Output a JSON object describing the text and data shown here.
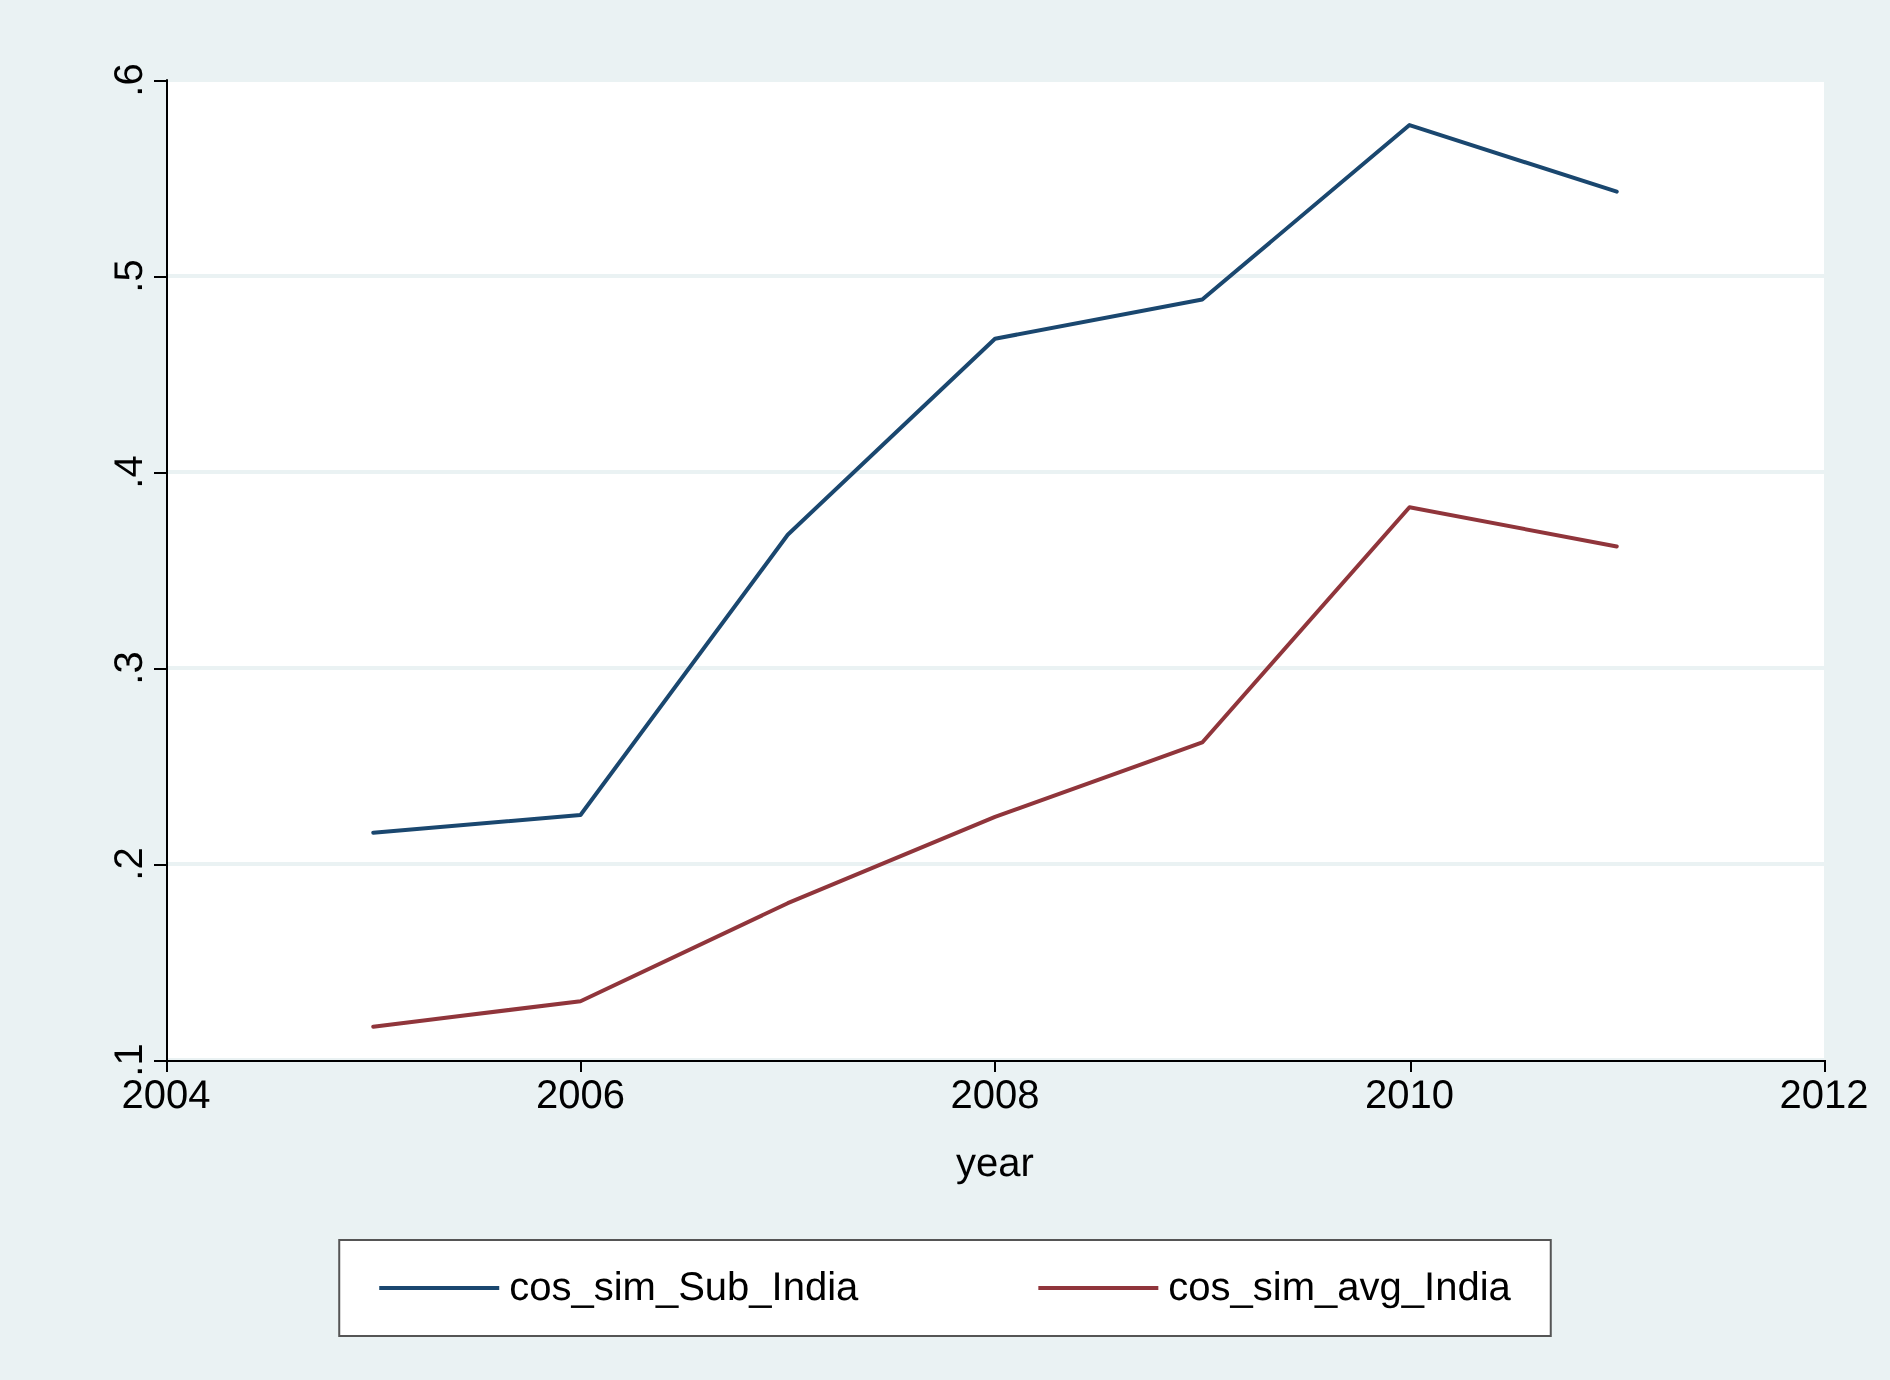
{
  "chart_data": {
    "type": "line",
    "xlabel": "year",
    "x": [
      2005,
      2006,
      2007,
      2008,
      2009,
      2010,
      2011
    ],
    "series": [
      {
        "name": "cos_sim_Sub_India",
        "color": "#1a476f",
        "values": [
          0.216,
          0.225,
          0.368,
          0.468,
          0.488,
          0.577,
          0.543
        ]
      },
      {
        "name": "cos_sim_avg_India",
        "color": "#90353b",
        "values": [
          0.117,
          0.13,
          0.18,
          0.224,
          0.262,
          0.382,
          0.362
        ]
      }
    ],
    "xlim": [
      2004,
      2012
    ],
    "xticks": [
      2004,
      2006,
      2008,
      2010,
      2012
    ],
    "ylim": [
      0.1,
      0.6
    ],
    "yticks": [
      {
        "value": 0.1,
        "label": ".1"
      },
      {
        "value": 0.2,
        "label": ".2"
      },
      {
        "value": 0.3,
        "label": ".3"
      },
      {
        "value": 0.4,
        "label": ".4"
      },
      {
        "value": 0.5,
        "label": ".5"
      },
      {
        "value": 0.6,
        "label": ".6"
      }
    ],
    "grid": "y",
    "legend": "bottom",
    "marker": "none",
    "line_style": "solid"
  }
}
